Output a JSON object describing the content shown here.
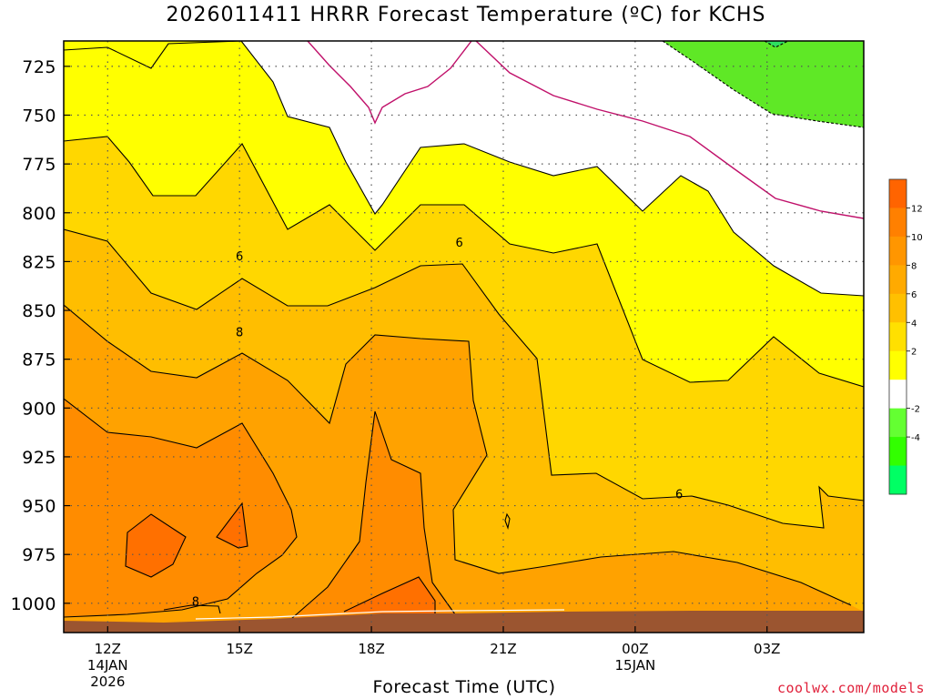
{
  "chart_data": {
    "type": "heatmap",
    "title": "2026011411 HRRR Forecast Temperature (ºC) for KCHS",
    "xlabel": "Forecast Time (UTC)",
    "ylabel": "",
    "x_ticks": [
      {
        "label": "12Z",
        "sub1": "14JAN",
        "sub2": "2026",
        "hour": 0
      },
      {
        "label": "15Z",
        "sub1": "",
        "sub2": "",
        "hour": 3
      },
      {
        "label": "18Z",
        "sub1": "",
        "sub2": "",
        "hour": 6
      },
      {
        "label": "21Z",
        "sub1": "",
        "sub2": "",
        "hour": 9
      },
      {
        "label": "00Z",
        "sub1": "15JAN",
        "sub2": "",
        "hour": 12
      },
      {
        "label": "03Z",
        "sub1": "",
        "sub2": "",
        "hour": 15
      }
    ],
    "xlim_hours": [
      -1,
      17.2
    ],
    "y_ticks": [
      "725",
      "750",
      "775",
      "800",
      "825",
      "850",
      "875",
      "900",
      "925",
      "950",
      "975",
      "1000"
    ],
    "ylim_hPa": [
      1015,
      712
    ],
    "y_reversed": true,
    "grid": true,
    "contour_interval_C": 2,
    "contour_labels": [
      {
        "text": "6",
        "hour": 3.0,
        "hPa": 822
      },
      {
        "text": "6",
        "hour": 8.0,
        "hPa": 815
      },
      {
        "text": "6",
        "hour": 13.0,
        "hPa": 944
      },
      {
        "text": "8",
        "hour": 3.0,
        "hPa": 861
      },
      {
        "text": "8",
        "hour": 2.0,
        "hPa": 999
      }
    ],
    "colorbar": {
      "ticks": [
        "12",
        "10",
        "8",
        "6",
        "4",
        "2",
        "-2",
        "-4"
      ],
      "colors": [
        "#ff6400",
        "#ff8000",
        "#ff9600",
        "#ffaa00",
        "#ffc000",
        "#ffe000",
        "#ffff00",
        "#ffffff",
        "#64ff32",
        "#32ff00",
        "#00ff64"
      ]
    },
    "fill_colors": {
      "below_0": "#5fe826",
      "range_0_2": "#ffffff",
      "range_2_4": "#ffff00",
      "range_4_6": "#ffd700",
      "range_6_8": "#ffbe00",
      "range_8_10": "#ffa200",
      "range_10_12": "#ff8c00",
      "range_12_14": "#ff7000",
      "ground": "#9b5530"
    },
    "credit": "coolwx.com/models"
  }
}
